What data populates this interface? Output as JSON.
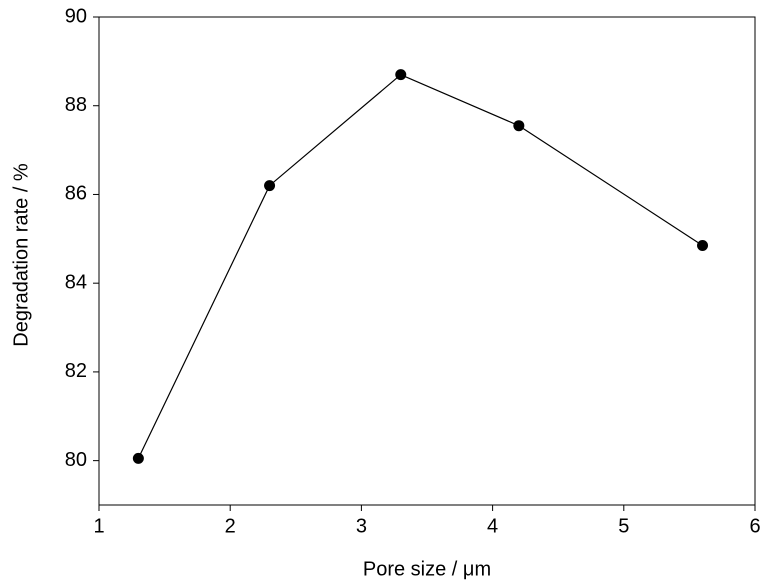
{
  "chart_data": {
    "type": "line",
    "x_label": "Pore size / μm",
    "y_label": "Degradation rate / %",
    "x": [
      1.3,
      2.3,
      3.3,
      4.2,
      5.6
    ],
    "series": [
      {
        "color": "#000000",
        "values": [
          80.05,
          86.2,
          88.7,
          87.55,
          84.85
        ]
      }
    ],
    "xlim": [
      1,
      6
    ],
    "xticks": [
      1,
      2,
      3,
      4,
      5,
      6
    ],
    "ylim": [
      79,
      90
    ],
    "yticks": [
      80,
      82,
      84,
      86,
      88,
      90
    ]
  }
}
